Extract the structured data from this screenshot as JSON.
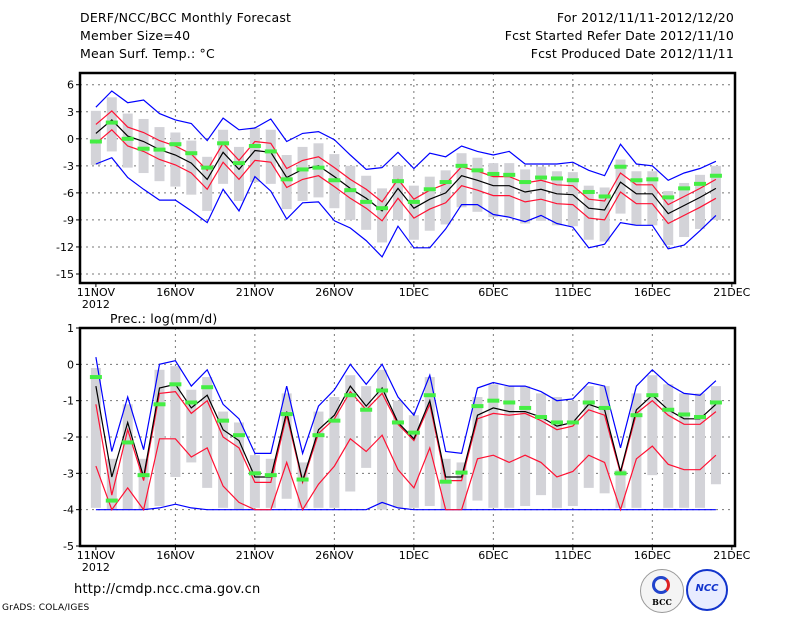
{
  "header": {
    "title": "DERF/NCC/BCC Monthly Forecast",
    "member_size": "Member Size=40",
    "variable": "Mean Surf. Temp.: °C",
    "period": "For 2012/11/11-2012/12/20",
    "started": "Fcst Started Refer Date 2012/11/10",
    "produced": "Fcst Produced Date 2012/11/11"
  },
  "footer": {
    "url": "http://cmdp.ncc.cma.gov.cn",
    "credit": "GrADS: COLA/IGES",
    "logo_bcc": "BCC",
    "logo_ncc": "NCC"
  },
  "colors": {
    "max_min": "#0000ff",
    "ensemble_range": "#ff1133",
    "mean": "#000000",
    "observed": "#44ee44",
    "spread": "#d3d3d8"
  },
  "chart_data": [
    {
      "type": "line",
      "title": "Mean Surf. Temp.: °C",
      "ylabel": "",
      "x_ticks": [
        "11NOV",
        "16NOV",
        "21NOV",
        "26NOV",
        "1DEC",
        "6DEC",
        "11DEC",
        "16DEC",
        "21DEC"
      ],
      "x_year_label": "2012",
      "y_ticks": [
        6,
        3,
        0,
        -3,
        -6,
        -9,
        -12,
        -15
      ],
      "ylim": [
        -16,
        7.3
      ],
      "grid": true,
      "days": 40,
      "series": [
        {
          "name": "max",
          "values": [
            3.5,
            5.3,
            4.0,
            4.3,
            2.8,
            2.1,
            1.7,
            -0.2,
            2.3,
            1.0,
            1.2,
            2.2,
            -0.3,
            0.6,
            0.8,
            -0.1,
            -1.8,
            -3.4,
            -3.2,
            -1.5,
            -3.3,
            -1.6,
            -2.0,
            -0.8,
            -1.4,
            -1.8,
            -1.4,
            -2.8,
            -2.8,
            -2.8,
            -2.6,
            -3.5,
            -4.1,
            -0.6,
            -2.8,
            -3.0,
            -4.6,
            -3.8,
            -3.3,
            -2.5
          ]
        },
        {
          "name": "min",
          "values": [
            -2.8,
            -2.1,
            -4.3,
            -5.6,
            -6.8,
            -6.8,
            -8.0,
            -9.3,
            -5.6,
            -8.0,
            -4.2,
            -5.8,
            -8.9,
            -7.1,
            -7.0,
            -9.1,
            -9.9,
            -11.3,
            -13.1,
            -9.7,
            -12.1,
            -12.1,
            -10.0,
            -7.3,
            -7.3,
            -8.4,
            -8.7,
            -9.2,
            -8.5,
            -9.4,
            -9.8,
            -12.1,
            -11.7,
            -9.3,
            -9.6,
            -9.6,
            -12.2,
            -11.8,
            -10.2,
            -8.5
          ]
        },
        {
          "name": "upper",
          "values": [
            1.6,
            3.1,
            1.3,
            0.7,
            -0.2,
            -0.8,
            -1.7,
            -3.5,
            -0.5,
            -2.4,
            -0.3,
            -0.5,
            -3.3,
            -2.4,
            -2.0,
            -3.2,
            -4.5,
            -5.6,
            -7.0,
            -4.5,
            -6.7,
            -5.7,
            -5.0,
            -3.1,
            -3.6,
            -4.2,
            -4.2,
            -4.9,
            -4.6,
            -5.1,
            -5.2,
            -6.7,
            -6.9,
            -3.8,
            -5.1,
            -5.1,
            -7.3,
            -6.4,
            -5.5,
            -4.5
          ]
        },
        {
          "name": "lower",
          "values": [
            -0.5,
            1.0,
            -0.8,
            -1.4,
            -2.3,
            -2.9,
            -3.8,
            -5.6,
            -2.6,
            -4.5,
            -2.4,
            -2.6,
            -5.4,
            -4.5,
            -4.1,
            -5.3,
            -6.6,
            -7.7,
            -9.1,
            -6.6,
            -8.8,
            -7.8,
            -7.1,
            -5.2,
            -5.7,
            -6.3,
            -6.3,
            -7.0,
            -6.7,
            -7.2,
            -7.3,
            -8.8,
            -9.0,
            -5.9,
            -7.2,
            -7.2,
            -9.4,
            -8.5,
            -7.6,
            -6.6
          ]
        },
        {
          "name": "mean",
          "values": [
            0.6,
            2.1,
            0.3,
            -0.3,
            -1.2,
            -1.8,
            -2.7,
            -4.5,
            -1.5,
            -3.4,
            -1.3,
            -1.5,
            -4.3,
            -3.4,
            -3.0,
            -4.2,
            -5.5,
            -6.6,
            -8.0,
            -5.5,
            -7.7,
            -6.7,
            -6.0,
            -4.1,
            -4.6,
            -5.2,
            -5.2,
            -5.9,
            -5.6,
            -6.1,
            -6.2,
            -7.7,
            -7.9,
            -4.8,
            -6.1,
            -6.1,
            -8.3,
            -7.4,
            -6.5,
            -5.5
          ]
        }
      ],
      "observed": [
        -0.3,
        1.8,
        0.0,
        -1.1,
        -1.2,
        -0.6,
        -1.6,
        -3.2,
        -0.5,
        -2.7,
        -0.8,
        -1.4,
        -4.5,
        -3.4,
        -3.2,
        -4.6,
        -5.7,
        -7.0,
        -7.7,
        -4.7,
        -7.0,
        -5.6,
        -4.8,
        -3.0,
        -3.5,
        -3.9,
        -4.0,
        -4.8,
        -4.3,
        -4.4,
        -4.6,
        -5.9,
        -6.4,
        -3.1,
        -4.6,
        -4.5,
        -6.5,
        -5.5,
        -5.0,
        -4.1
      ],
      "spread_high": [
        3.1,
        4.6,
        2.8,
        2.2,
        1.3,
        0.7,
        -0.2,
        -2.0,
        1.0,
        -0.9,
        1.2,
        1.0,
        -1.8,
        -0.9,
        -0.5,
        -1.7,
        -3.0,
        -4.1,
        -5.5,
        -3.0,
        -5.2,
        -4.2,
        -3.5,
        -1.6,
        -2.1,
        -2.7,
        -2.7,
        -3.4,
        -3.1,
        -3.6,
        -3.7,
        -5.2,
        -5.4,
        -2.3,
        -3.6,
        -3.6,
        -5.8,
        -4.9,
        -4.0,
        -3.0
      ],
      "spread_low": [
        -2.9,
        -1.4,
        -3.2,
        -3.8,
        -4.7,
        -5.3,
        -6.2,
        -8.0,
        -5.0,
        -6.9,
        -4.8,
        -5.0,
        -7.8,
        -6.9,
        -6.5,
        -7.7,
        -9.0,
        -10.1,
        -11.5,
        -9.0,
        -11.2,
        -10.2,
        -9.5,
        -7.6,
        -8.1,
        -8.7,
        -8.7,
        -9.4,
        -9.1,
        -9.6,
        -9.7,
        -11.2,
        -11.4,
        -8.3,
        -9.6,
        -9.6,
        -11.8,
        -10.9,
        -10.0,
        -9.0
      ]
    },
    {
      "type": "line",
      "title": "Prec.: log(mm/d)",
      "ylabel": "",
      "x_ticks": [
        "11NOV",
        "16NOV",
        "21NOV",
        "26NOV",
        "1DEC",
        "6DEC",
        "11DEC",
        "16DEC",
        "21DEC"
      ],
      "x_year_label": "2012",
      "y_ticks": [
        1,
        0,
        -1,
        -2,
        -3,
        -4,
        -5
      ],
      "ylim": [
        -5,
        1
      ],
      "grid": true,
      "days": 40,
      "series": [
        {
          "name": "max",
          "values": [
            0.2,
            -2.4,
            -0.9,
            -2.35,
            0.0,
            0.1,
            -0.6,
            -0.15,
            -1.1,
            -1.5,
            -2.45,
            -2.45,
            -0.6,
            -2.45,
            -1.15,
            -0.7,
            0.0,
            -0.55,
            0.0,
            -0.9,
            -1.4,
            -0.3,
            -2.4,
            -2.45,
            -0.65,
            -0.5,
            -0.6,
            -0.6,
            -0.75,
            -1.0,
            -0.95,
            -0.5,
            -0.6,
            -2.3,
            -0.6,
            -0.15,
            -0.55,
            -0.8,
            -0.85,
            -0.45
          ]
        },
        {
          "name": "min",
          "values": [
            -4,
            -4,
            -4,
            -4,
            -3.95,
            -3.85,
            -3.95,
            -4,
            -4,
            -4,
            -4,
            -4,
            -4,
            -4,
            -4,
            -4,
            -4,
            -4,
            -3.8,
            -3.95,
            -4,
            -4,
            -4,
            -4,
            -4,
            -4,
            -4,
            -4,
            -4,
            -4,
            -4,
            -4,
            -4,
            -4,
            -4,
            -4,
            -4,
            -4,
            -4,
            -4
          ]
        },
        {
          "name": "upper",
          "values": [
            -1.1,
            -3.6,
            -1.8,
            -3.2,
            -0.8,
            -0.75,
            -1.35,
            -1.0,
            -2.0,
            -2.3,
            -3.25,
            -3.25,
            -1.4,
            -3.25,
            -1.9,
            -1.5,
            -0.75,
            -1.25,
            -0.8,
            -1.65,
            -2.1,
            -1.1,
            -3.2,
            -3.2,
            -1.5,
            -1.35,
            -1.4,
            -1.35,
            -1.55,
            -1.8,
            -1.7,
            -1.25,
            -1.4,
            -3.0,
            -1.35,
            -1.0,
            -1.4,
            -1.65,
            -1.65,
            -1.3
          ]
        },
        {
          "name": "lower",
          "values": [
            -2.8,
            -4,
            -3.4,
            -4,
            -2.05,
            -2.05,
            -2.55,
            -2.3,
            -3.35,
            -3.8,
            -4,
            -4,
            -2.7,
            -4,
            -3.3,
            -2.8,
            -2.05,
            -2.4,
            -1.95,
            -2.9,
            -3.4,
            -2.3,
            -4,
            -4,
            -2.6,
            -2.5,
            -2.7,
            -2.5,
            -2.7,
            -3.1,
            -2.95,
            -2.5,
            -2.7,
            -4,
            -2.6,
            -2.25,
            -2.75,
            -2.9,
            -2.9,
            -2.5
          ]
        },
        {
          "name": "mean",
          "values": [
            -0.6,
            -3.1,
            -1.6,
            -3.1,
            -0.65,
            -0.55,
            -1.2,
            -0.85,
            -1.8,
            -2.1,
            -3.1,
            -3.1,
            -1.3,
            -3.2,
            -1.8,
            -1.4,
            -0.6,
            -1.15,
            -0.65,
            -1.6,
            -2.05,
            -1.0,
            -3.1,
            -3.1,
            -1.4,
            -1.2,
            -1.3,
            -1.3,
            -1.45,
            -1.7,
            -1.6,
            -1.1,
            -1.25,
            -2.95,
            -1.25,
            -0.85,
            -1.25,
            -1.5,
            -1.5,
            -1.1
          ]
        }
      ],
      "observed": [
        -0.35,
        -3.75,
        -2.15,
        -3.05,
        -1.1,
        -0.55,
        -1.05,
        -0.63,
        -1.55,
        -1.95,
        -3.0,
        -3.05,
        -1.37,
        -3.17,
        -1.95,
        -1.55,
        -0.85,
        -1.25,
        -0.72,
        -1.6,
        -1.88,
        -0.85,
        -3.23,
        -2.98,
        -1.15,
        -1.0,
        -1.05,
        -1.2,
        -1.45,
        -1.6,
        -1.6,
        -1.05,
        -1.2,
        -3.0,
        -1.4,
        -0.85,
        -1.25,
        -1.38,
        -1.45,
        -1.05
      ],
      "spread_high": [
        -0.1,
        -2.6,
        -1.1,
        -2.6,
        -0.15,
        -0.05,
        -0.7,
        -0.35,
        -1.3,
        -1.6,
        -2.5,
        -2.6,
        -0.8,
        -2.7,
        -1.3,
        -0.9,
        -0.3,
        -0.6,
        -0.15,
        -1.0,
        -1.4,
        -0.35,
        -2.6,
        -2.7,
        -0.9,
        -0.55,
        -0.6,
        -0.6,
        -0.8,
        -0.9,
        -1.0,
        -0.6,
        -0.6,
        -2.9,
        -0.8,
        -0.3,
        -0.55,
        -0.8,
        -0.8,
        -0.6
      ],
      "spread_low": [
        -3.95,
        -4,
        -4,
        -4,
        -3.9,
        -3.1,
        -2.7,
        -3.4,
        -3.95,
        -4,
        -3.95,
        -3.95,
        -3.7,
        -3.95,
        -3.95,
        -3.95,
        -3.5,
        -2.85,
        -4,
        -3.95,
        -3.95,
        -3.9,
        -4,
        -4,
        -3.75,
        -3.95,
        -3.95,
        -3.9,
        -3.6,
        -3.95,
        -3.9,
        -3.4,
        -3.55,
        -3.95,
        -3.95,
        -3.05,
        -3.95,
        -3.95,
        -3.95,
        -3.3
      ]
    }
  ]
}
